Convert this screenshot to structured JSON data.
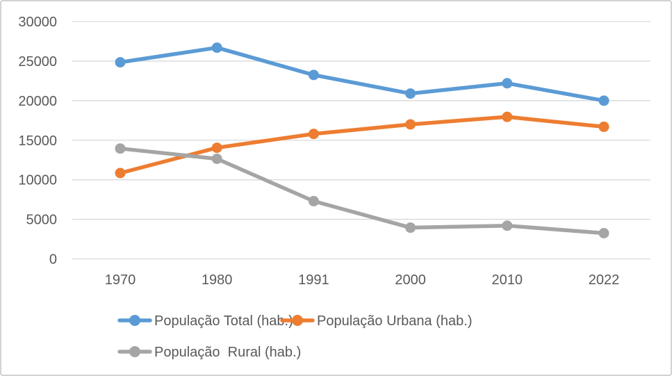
{
  "chart_data": {
    "type": "line",
    "title": "",
    "xlabel": "",
    "ylabel": "",
    "categories": [
      "1970",
      "1980",
      "1991",
      "2000",
      "2010",
      "2022"
    ],
    "series": [
      {
        "name": "População Total (hab.)",
        "color": "#5B9BD5",
        "values": [
          24850,
          26700,
          23250,
          20900,
          22200,
          20000
        ]
      },
      {
        "name": "População Urbana (hab.)",
        "color": "#ED7D31",
        "values": [
          10850,
          14050,
          15800,
          17000,
          17950,
          16700
        ]
      },
      {
        "name": "População  Rural (hab.)",
        "color": "#A5A5A5",
        "values": [
          13950,
          12650,
          7300,
          3950,
          4200,
          3250
        ]
      }
    ],
    "ylim": [
      0,
      30000
    ],
    "ytick_step": 5000,
    "ytick_labels": [
      "0",
      "5000",
      "10000",
      "15000",
      "20000",
      "25000",
      "30000"
    ],
    "grid": true,
    "legend_position": "bottom",
    "marker": "circle"
  },
  "styles": {
    "gridline_color": "#D9D9D9",
    "axis_text_color": "#595959",
    "frame_border_color": "#D2D2D2",
    "background_color": "#FFFFFF"
  }
}
